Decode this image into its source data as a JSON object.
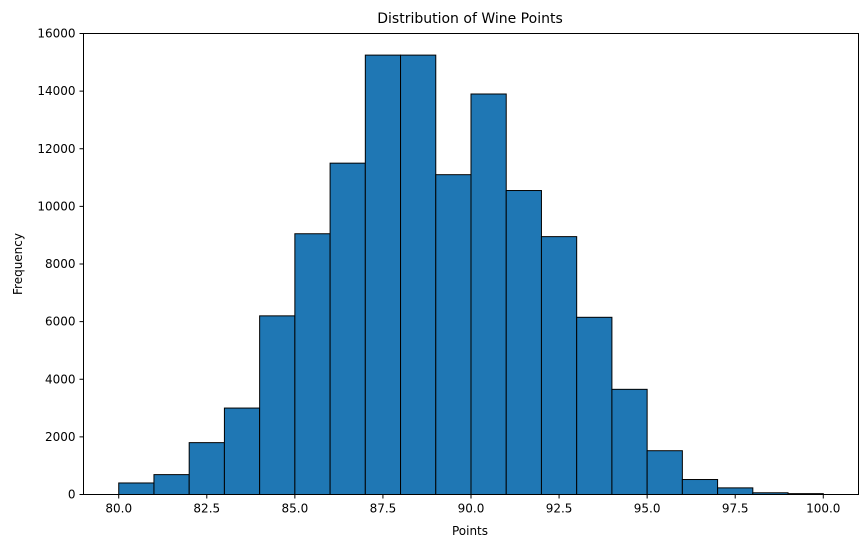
{
  "chart_data": {
    "type": "bar",
    "title": "Distribution of Wine Points",
    "xlabel": "Points",
    "ylabel": "Frequency",
    "bins": [
      {
        "start": 80,
        "end": 81,
        "value": 400
      },
      {
        "start": 81,
        "end": 82,
        "value": 690
      },
      {
        "start": 82,
        "end": 83,
        "value": 1800
      },
      {
        "start": 83,
        "end": 84,
        "value": 3000
      },
      {
        "start": 84,
        "end": 85,
        "value": 6200
      },
      {
        "start": 85,
        "end": 86,
        "value": 9050
      },
      {
        "start": 86,
        "end": 87,
        "value": 11500
      },
      {
        "start": 87,
        "end": 88,
        "value": 15250
      },
      {
        "start": 88,
        "end": 89,
        "value": 15250
      },
      {
        "start": 89,
        "end": 90,
        "value": 11100
      },
      {
        "start": 90,
        "end": 91,
        "value": 13900
      },
      {
        "start": 91,
        "end": 92,
        "value": 10550
      },
      {
        "start": 92,
        "end": 93,
        "value": 8950
      },
      {
        "start": 93,
        "end": 94,
        "value": 6150
      },
      {
        "start": 94,
        "end": 95,
        "value": 3650
      },
      {
        "start": 95,
        "end": 96,
        "value": 1520
      },
      {
        "start": 96,
        "end": 97,
        "value": 520
      },
      {
        "start": 97,
        "end": 98,
        "value": 230
      },
      {
        "start": 98,
        "end": 99,
        "value": 60
      },
      {
        "start": 99,
        "end": 100,
        "value": 30
      }
    ],
    "xlim": [
      79.0,
      101.0
    ],
    "ylim": [
      0,
      16000
    ],
    "xticks": [
      80.0,
      82.5,
      85.0,
      87.5,
      90.0,
      92.5,
      95.0,
      97.5,
      100.0
    ],
    "xtick_labels": [
      "80.0",
      "82.5",
      "85.0",
      "87.5",
      "90.0",
      "92.5",
      "95.0",
      "97.5",
      "100.0"
    ],
    "yticks": [
      0,
      2000,
      4000,
      6000,
      8000,
      10000,
      12000,
      14000,
      16000
    ],
    "ytick_labels": [
      "0",
      "2000",
      "4000",
      "6000",
      "8000",
      "10000",
      "12000",
      "14000",
      "16000"
    ],
    "grid": false,
    "bar_color": "#1f77b4",
    "edge_color": "#000000"
  }
}
